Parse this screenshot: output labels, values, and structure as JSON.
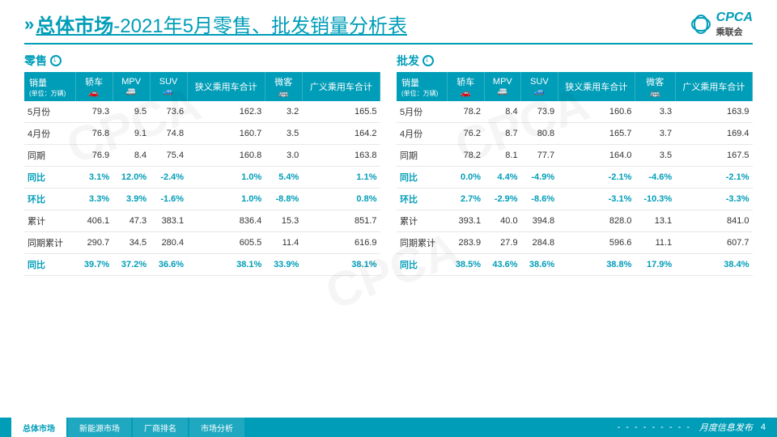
{
  "header": {
    "title_main": "总体市场",
    "title_sep": "-",
    "title_sub": "2021年5月零售、批发销量分析表",
    "logo_text": "CPCA",
    "logo_sub": "乘联会"
  },
  "colors": {
    "accent": "#009db8",
    "highlight_text": "#009db8",
    "plain_text": "#333333",
    "row_border": "#e8e8e8"
  },
  "columns": {
    "c0": {
      "label": "销量",
      "unit": "(单位：万辆)"
    },
    "c1": {
      "label": "轿车",
      "icon": "🚗"
    },
    "c2": {
      "label": "MPV",
      "icon": "🚐"
    },
    "c3": {
      "label": "SUV",
      "icon": "🚙"
    },
    "c4": {
      "label": "狭义乘用车合计"
    },
    "c5": {
      "label": "微客",
      "icon": "🚌"
    },
    "c6": {
      "label": "广义乘用车合计"
    }
  },
  "left": {
    "title": "零售",
    "rows": [
      {
        "label": "5月份",
        "hl": false,
        "v": [
          "79.3",
          "9.5",
          "73.6",
          "162.3",
          "3.2",
          "165.5"
        ]
      },
      {
        "label": "4月份",
        "hl": false,
        "v": [
          "76.8",
          "9.1",
          "74.8",
          "160.7",
          "3.5",
          "164.2"
        ]
      },
      {
        "label": "同期",
        "hl": false,
        "v": [
          "76.9",
          "8.4",
          "75.4",
          "160.8",
          "3.0",
          "163.8"
        ]
      },
      {
        "label": "同比",
        "hl": true,
        "v": [
          "3.1%",
          "12.0%",
          "-2.4%",
          "1.0%",
          "5.4%",
          "1.1%"
        ]
      },
      {
        "label": "环比",
        "hl": true,
        "v": [
          "3.3%",
          "3.9%",
          "-1.6%",
          "1.0%",
          "-8.8%",
          "0.8%"
        ]
      },
      {
        "label": "累计",
        "hl": false,
        "v": [
          "406.1",
          "47.3",
          "383.1",
          "836.4",
          "15.3",
          "851.7"
        ]
      },
      {
        "label": "同期累计",
        "hl": false,
        "v": [
          "290.7",
          "34.5",
          "280.4",
          "605.5",
          "11.4",
          "616.9"
        ]
      },
      {
        "label": "同比",
        "hl": true,
        "v": [
          "39.7%",
          "37.2%",
          "36.6%",
          "38.1%",
          "33.9%",
          "38.1%"
        ]
      }
    ]
  },
  "right": {
    "title": "批发",
    "rows": [
      {
        "label": "5月份",
        "hl": false,
        "v": [
          "78.2",
          "8.4",
          "73.9",
          "160.6",
          "3.3",
          "163.9"
        ]
      },
      {
        "label": "4月份",
        "hl": false,
        "v": [
          "76.2",
          "8.7",
          "80.8",
          "165.7",
          "3.7",
          "169.4"
        ]
      },
      {
        "label": "同期",
        "hl": false,
        "v": [
          "78.2",
          "8.1",
          "77.7",
          "164.0",
          "3.5",
          "167.5"
        ]
      },
      {
        "label": "同比",
        "hl": true,
        "v": [
          "0.0%",
          "4.4%",
          "-4.9%",
          "-2.1%",
          "-4.6%",
          "-2.1%"
        ]
      },
      {
        "label": "环比",
        "hl": true,
        "v": [
          "2.7%",
          "-2.9%",
          "-8.6%",
          "-3.1%",
          "-10.3%",
          "-3.3%"
        ]
      },
      {
        "label": "累计",
        "hl": false,
        "v": [
          "393.1",
          "40.0",
          "394.8",
          "828.0",
          "13.1",
          "841.0"
        ]
      },
      {
        "label": "同期累计",
        "hl": false,
        "v": [
          "283.9",
          "27.9",
          "284.8",
          "596.6",
          "11.1",
          "607.7"
        ]
      },
      {
        "label": "同比",
        "hl": true,
        "v": [
          "38.5%",
          "43.6%",
          "38.6%",
          "38.8%",
          "17.9%",
          "38.4%"
        ]
      }
    ]
  },
  "footer": {
    "tabs": [
      "总体市场",
      "新能源市场",
      "厂商排名",
      "市场分析"
    ],
    "active_tab": 0,
    "right_label": "月度信息发布",
    "page": "4"
  },
  "watermark": "CPCA"
}
